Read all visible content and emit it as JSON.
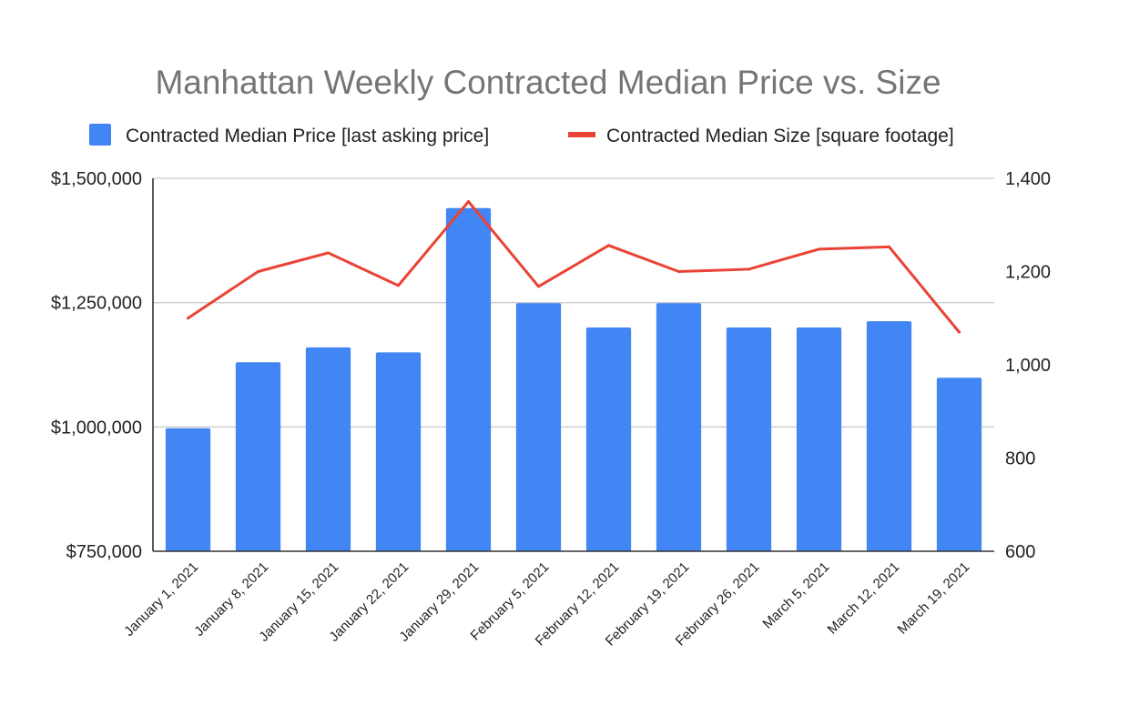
{
  "chart_data": {
    "type": "bar",
    "title": "Manhattan Weekly Contracted Median Price vs. Size",
    "categories": [
      "January 1, 2021",
      "January 8, 2021",
      "January 15, 2021",
      "January 22, 2021",
      "January 29, 2021",
      "February 5, 2021",
      "February 12, 2021",
      "February 19, 2021",
      "February 26, 2021",
      "March 5, 2021",
      "March 12, 2021",
      "March 19, 2021"
    ],
    "series": [
      {
        "name": "Contracted Median Price [last asking price]",
        "type": "bar",
        "axis": "left",
        "color": "#4285F4",
        "values": [
          997500,
          1130000,
          1160000,
          1150000,
          1440000,
          1249000,
          1200000,
          1249000,
          1200000,
          1200000,
          1212500,
          1099000
        ]
      },
      {
        "name": "Contracted Median Size [square footage]",
        "type": "line",
        "axis": "right",
        "color": "#EA4335",
        "values": [
          1100,
          1200,
          1240,
          1170,
          1350,
          1168,
          1256,
          1200,
          1205,
          1248,
          1253,
          1070
        ]
      }
    ],
    "y_left": {
      "range": [
        750000,
        1500000
      ],
      "ticks": [
        750000,
        1000000,
        1250000,
        1500000
      ],
      "tick_labels": [
        "$750,000",
        "$1,000,000",
        "$1,250,000",
        "$1,500,000"
      ]
    },
    "y_right": {
      "range": [
        600,
        1400
      ],
      "ticks": [
        600,
        800,
        1000,
        1200,
        1400
      ],
      "tick_labels": [
        "600",
        "800",
        "1,000",
        "1,200",
        "1,400"
      ]
    },
    "grid": true,
    "legend_position": "top"
  }
}
